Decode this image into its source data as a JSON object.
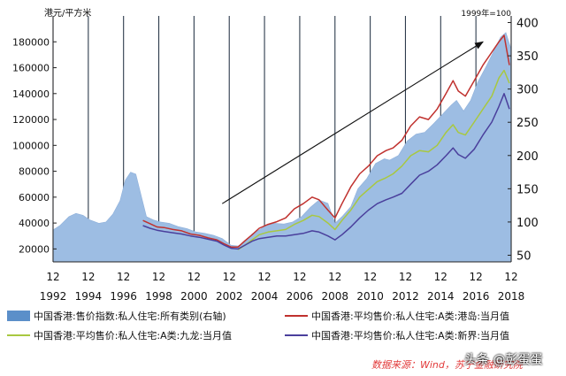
{
  "chart_data": {
    "type": "line",
    "left_axis_unit": "港元/平方米",
    "right_axis_unit": "1999年=100",
    "left_ylim": [
      10000,
      200000
    ],
    "left_ticks": [
      "20000",
      "40000",
      "60000",
      "80000",
      "100000",
      "120000",
      "140000",
      "160000",
      "180000"
    ],
    "right_ylim": [
      40,
      410
    ],
    "right_ticks": [
      "50",
      "100",
      "150",
      "200",
      "250",
      "300",
      "350",
      "400"
    ],
    "xlim": [
      1992.9,
      2018.9
    ],
    "x_tick_month": "12",
    "x_tick_years": [
      "1992",
      "1994",
      "1996",
      "1998",
      "2000",
      "2002",
      "2004",
      "2006",
      "2008",
      "2010",
      "2012",
      "2014",
      "2016",
      "2018"
    ],
    "series": [
      {
        "name": "中国香港:售价指数:私人住宅:所有类别(右轴)",
        "axis": "right",
        "style": "area",
        "color": "#9dbde3",
        "x": [
          1992.9,
          1993.3,
          1993.8,
          1994.2,
          1994.6,
          1995.0,
          1995.5,
          1995.9,
          1996.3,
          1996.7,
          1997.0,
          1997.3,
          1997.6,
          1997.9,
          1998.2,
          1998.6,
          1999.0,
          1999.5,
          2000.0,
          2000.5,
          2001.0,
          2001.5,
          2002.0,
          2002.5,
          2003.0,
          2003.4,
          2003.8,
          2004.2,
          2004.6,
          2005.0,
          2005.5,
          2006.0,
          2006.5,
          2007.0,
          2007.5,
          2008.0,
          2008.5,
          2008.9,
          2009.3,
          2009.8,
          2010.2,
          2010.7,
          2011.2,
          2011.7,
          2012.0,
          2012.5,
          2013.0,
          2013.5,
          2014.0,
          2014.5,
          2015.0,
          2015.5,
          2015.8,
          2016.2,
          2016.6,
          2017.0,
          2017.5,
          2018.0,
          2018.3,
          2018.6,
          2018.9
        ],
        "values": [
          88,
          95,
          108,
          113,
          110,
          103,
          98,
          100,
          112,
          132,
          163,
          175,
          172,
          140,
          108,
          103,
          100,
          98,
          93,
          90,
          85,
          83,
          80,
          75,
          65,
          64,
          70,
          82,
          88,
          95,
          98,
          97,
          100,
          108,
          122,
          133,
          128,
          98,
          108,
          123,
          150,
          165,
          188,
          195,
          193,
          200,
          222,
          232,
          235,
          248,
          262,
          276,
          283,
          267,
          283,
          310,
          335,
          362,
          378,
          385,
          360
        ]
      },
      {
        "name": "中国香港:平均售价:私人住宅:A类:港岛:当月值",
        "axis": "left",
        "style": "line",
        "color": "#c0312e",
        "x": [
          1998.0,
          1998.4,
          1998.8,
          1999.2,
          1999.7,
          2000.2,
          2000.7,
          2001.2,
          2001.7,
          2002.2,
          2002.6,
          2003.0,
          2003.4,
          2003.8,
          2004.2,
          2004.6,
          2005.1,
          2005.6,
          2006.1,
          2006.6,
          2007.1,
          2007.6,
          2008.0,
          2008.5,
          2008.9,
          2009.3,
          2009.8,
          2010.3,
          2010.8,
          2011.3,
          2011.8,
          2012.2,
          2012.7,
          2013.2,
          2013.7,
          2014.2,
          2014.7,
          2015.2,
          2015.6,
          2015.9,
          2016.3,
          2016.8,
          2017.3,
          2017.8,
          2018.2,
          2018.5,
          2018.8
        ],
        "values": [
          42000,
          39500,
          37000,
          36500,
          35000,
          34000,
          31500,
          30500,
          28500,
          27000,
          24000,
          21500,
          21500,
          26500,
          31000,
          36000,
          39000,
          41000,
          44000,
          51000,
          55000,
          60000,
          58000,
          50000,
          44000,
          55000,
          68000,
          78000,
          84000,
          92000,
          96000,
          98000,
          104000,
          115000,
          122000,
          120000,
          128000,
          140000,
          150000,
          142000,
          138000,
          150000,
          162000,
          172000,
          180000,
          185000,
          162000
        ]
      },
      {
        "name": "中国香港:平均售价:私人住宅:A类:九龙:当月值",
        "axis": "left",
        "style": "line",
        "color": "#a8c840",
        "x": [
          2003.4,
          2003.8,
          2004.2,
          2004.6,
          2005.1,
          2005.6,
          2006.1,
          2006.6,
          2007.1,
          2007.6,
          2008.0,
          2008.5,
          2008.9,
          2009.3,
          2009.8,
          2010.3,
          2010.8,
          2011.3,
          2011.8,
          2012.2,
          2012.7,
          2013.2,
          2013.7,
          2014.2,
          2014.7,
          2015.2,
          2015.6,
          2015.9,
          2016.3,
          2016.8,
          2017.3,
          2017.8,
          2018.2,
          2018.5,
          2018.8
        ],
        "values": [
          19500,
          23000,
          27000,
          31000,
          33000,
          34000,
          35000,
          39000,
          42000,
          46000,
          45000,
          40000,
          35000,
          42000,
          50000,
          60000,
          66000,
          72000,
          75000,
          78000,
          84000,
          92000,
          96000,
          95000,
          100000,
          110000,
          116000,
          110000,
          108000,
          118000,
          128000,
          138000,
          152000,
          158000,
          148000
        ]
      },
      {
        "name": "中国香港:平均售价:私人住宅:A类:新界:当月值",
        "axis": "left",
        "style": "line",
        "color": "#4a3f9c",
        "x": [
          1998.0,
          1998.4,
          1998.8,
          1999.2,
          1999.7,
          2000.2,
          2000.7,
          2001.2,
          2001.7,
          2002.2,
          2002.6,
          2003.0,
          2003.4,
          2003.8,
          2004.2,
          2004.6,
          2005.1,
          2005.6,
          2006.1,
          2006.6,
          2007.1,
          2007.6,
          2008.0,
          2008.5,
          2008.9,
          2009.3,
          2009.8,
          2010.3,
          2010.8,
          2011.3,
          2011.8,
          2012.2,
          2012.7,
          2013.2,
          2013.7,
          2014.2,
          2014.7,
          2015.2,
          2015.6,
          2015.9,
          2016.3,
          2016.8,
          2017.3,
          2017.8,
          2018.2,
          2018.5,
          2018.8
        ],
        "values": [
          38000,
          36000,
          34500,
          33500,
          32500,
          31500,
          30000,
          29000,
          27500,
          26000,
          23000,
          20500,
          20000,
          23000,
          26000,
          28000,
          29000,
          30000,
          30000,
          31000,
          32000,
          34000,
          33000,
          30000,
          27000,
          31000,
          37000,
          44000,
          50000,
          55000,
          58000,
          60000,
          63000,
          70000,
          77000,
          80000,
          85000,
          92000,
          98000,
          93000,
          90000,
          97000,
          108000,
          118000,
          130000,
          140000,
          128000
        ]
      }
    ],
    "annotations": [
      {
        "type": "arrow",
        "from": [
          2002.5,
          55000
        ],
        "to": [
          2017.3,
          180000
        ]
      }
    ]
  },
  "legend": [
    "中国香港:售价指数:私人住宅:所有类别(右轴)",
    "中国香港:平均售价:私人住宅:A类:港岛:当月值",
    "中国香港:平均售价:私人住宅:A类:九龙:当月值",
    "中国香港:平均售价:私人住宅:A类:新界:当月值"
  ],
  "source": "数据来源：Wind，苏宁金融研究院",
  "watermark": "头条 @彭蛋蛋",
  "colors": {
    "area": "#9dbde3",
    "area_edge": "#5b8fc9",
    "hk_island": "#c0312e",
    "kowloon": "#a8c840",
    "new_territories": "#4a3f9c",
    "legend_bar": "#5b8fc9"
  }
}
